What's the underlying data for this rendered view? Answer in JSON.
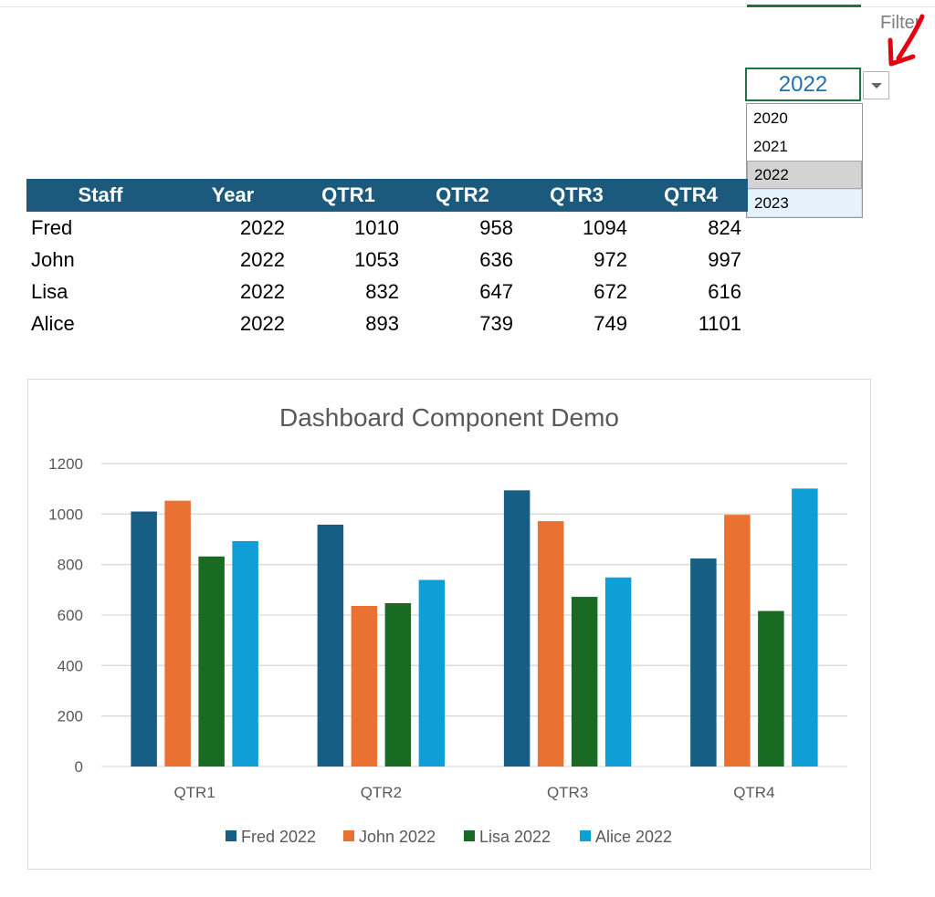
{
  "header": {
    "filter_label": "Filter",
    "selected_year": "2022",
    "year_options": [
      "2020",
      "2021",
      "2022",
      "2023"
    ]
  },
  "table": {
    "columns": [
      "Staff",
      "Year",
      "QTR1",
      "QTR2",
      "QTR3",
      "QTR4"
    ],
    "rows": [
      [
        "Fred",
        "2022",
        "1010",
        "958",
        "1094",
        "824"
      ],
      [
        "John",
        "2022",
        "1053",
        "636",
        "972",
        "997"
      ],
      [
        "Lisa",
        "2022",
        "832",
        "647",
        "672",
        "616"
      ],
      [
        "Alice",
        "2022",
        "893",
        "739",
        "749",
        "1101"
      ]
    ]
  },
  "colors": {
    "accent": "#217346",
    "header_fill": "#1c5a7d",
    "arrow": "#e3000f"
  },
  "chart_data": {
    "type": "bar",
    "title": "Dashboard Component Demo",
    "categories": [
      "QTR1",
      "QTR2",
      "QTR3",
      "QTR4"
    ],
    "series": [
      {
        "name": "Fred 2022",
        "values": [
          1010,
          958,
          1094,
          824
        ],
        "color": "#165e83"
      },
      {
        "name": "John 2022",
        "values": [
          1053,
          636,
          972,
          997
        ],
        "color": "#e97132"
      },
      {
        "name": "Lisa 2022",
        "values": [
          832,
          647,
          672,
          616
        ],
        "color": "#196b24"
      },
      {
        "name": "Alice 2022",
        "values": [
          893,
          739,
          749,
          1101
        ],
        "color": "#0f9ed5"
      }
    ],
    "yticks": [
      0,
      200,
      400,
      600,
      800,
      1000,
      1200
    ],
    "ylim": [
      0,
      1200
    ],
    "grid": true,
    "legend_position": "bottom"
  }
}
